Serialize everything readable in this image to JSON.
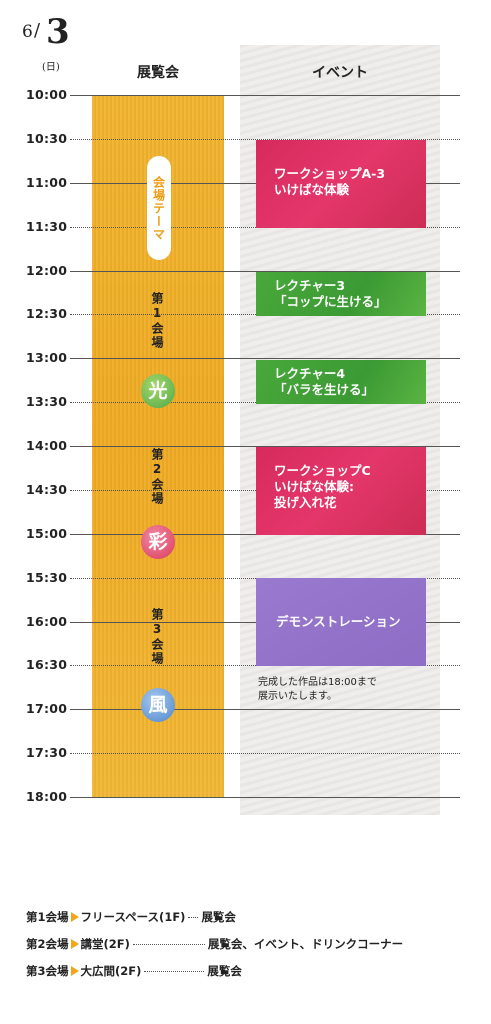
{
  "date": {
    "month": "6",
    "slash": "/",
    "day": "3",
    "weekday": "(日)"
  },
  "headers": {
    "exhibit": "展覧会",
    "event": "イベント"
  },
  "times": [
    "10:00",
    "10:30",
    "11:00",
    "11:30",
    "12:00",
    "12:30",
    "13:00",
    "13:30",
    "14:00",
    "14:30",
    "15:00",
    "15:30",
    "16:00",
    "16:30",
    "17:00",
    "17:30",
    "18:00"
  ],
  "exhibit": {
    "theme_label": "会場テーマ",
    "venues": [
      {
        "title": "第1会場",
        "symbol": "光",
        "color": "#5aae4a"
      },
      {
        "title": "第2会場",
        "symbol": "彩",
        "color": "#d93a5c"
      },
      {
        "title": "第3会場",
        "symbol": "風",
        "color": "#4c87cc"
      }
    ]
  },
  "events": [
    {
      "lines": [
        "ワークショップA-3",
        "いけばな体験"
      ],
      "color": "#d62a5d"
    },
    {
      "lines": [
        "レクチャー3",
        "「コップに生ける」"
      ],
      "color": "#49a83a"
    },
    {
      "lines": [
        "レクチャー4",
        "「バラを生ける」"
      ],
      "color": "#49a83a"
    },
    {
      "lines": [
        "ワークショップC",
        "いけばな体験:",
        "投げ入れ花"
      ],
      "color": "#d62a5d"
    },
    {
      "lines": [
        "デモンストレーション"
      ],
      "color": "#9a7acf"
    }
  ],
  "note": [
    "完成した作品は18:00まで",
    "展示いたします。"
  ],
  "footer": [
    {
      "venue": "第1会場",
      "place": "フリースペース(1F)",
      "content": "展覧会"
    },
    {
      "venue": "第2会場",
      "place": "講堂(2F)",
      "content": "展覧会、イベント、ドリンクコーナー"
    },
    {
      "venue": "第3会場",
      "place": "大広間(2F)",
      "content": "展覧会"
    }
  ],
  "colors": {
    "exhibit_bg": "#efaa22",
    "theme_text": "#ee9c12",
    "arrow": "#f0a51e"
  }
}
